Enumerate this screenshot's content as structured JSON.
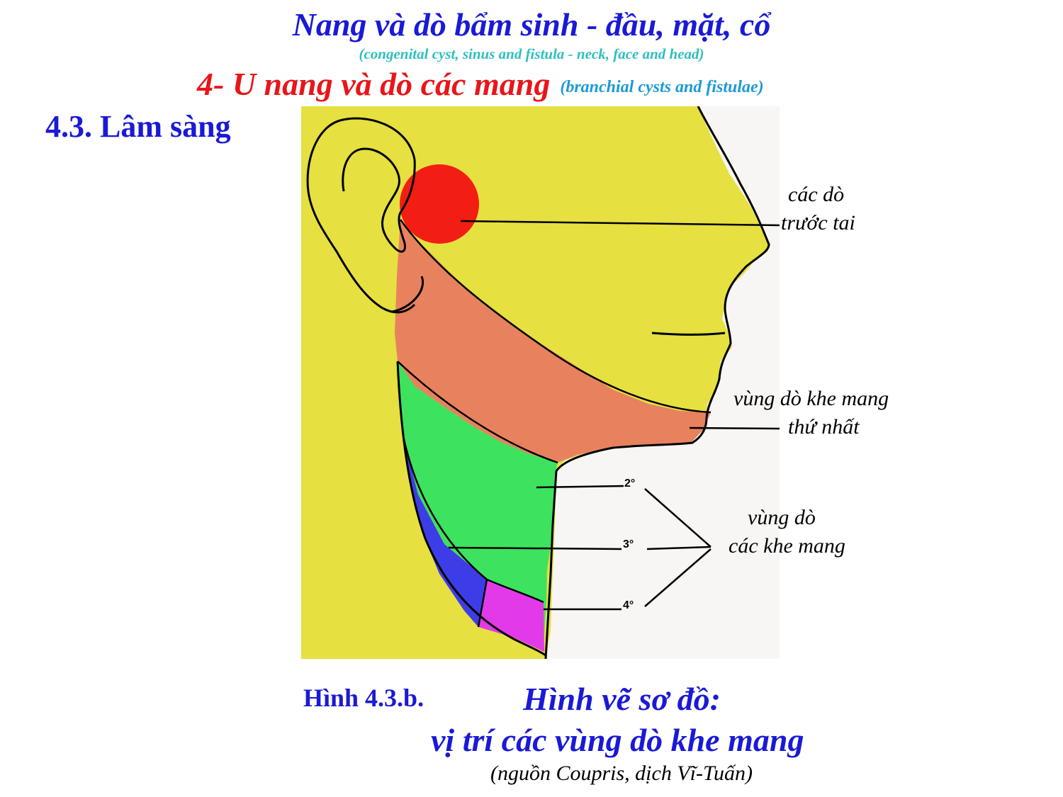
{
  "header": {
    "title": "Nang và dò bẩm sinh - đầu, mặt, cổ",
    "subtitle": "(congenital cyst, sinus and fistula - neck, face and head)",
    "section": "4- U nang và dò các mang",
    "section_en": "(branchial cysts and fistulae)",
    "subsection": "4.3. Lâm sàng"
  },
  "figure": {
    "labels": {
      "preauricular_line1": "các dò",
      "preauricular_line2": "trước tai",
      "first_cleft_line1": "vùng dò khe mang",
      "first_cleft_line2": "thứ nhất",
      "clefts_line1": "vùng dò",
      "clefts_line2": "các khe mang"
    },
    "numbers": [
      "2°",
      "3°",
      "4°"
    ],
    "colors": {
      "background": "#e6e040",
      "preauricular": "#f21e14",
      "first_cleft": "#e8825e",
      "second_cleft": "#3de35e",
      "third_cleft": "#3d3de8",
      "fourth_cleft": "#e23ae8",
      "neck_front": "#f7f6f4"
    }
  },
  "caption": {
    "label": "Hình 4.3.b.",
    "title_line1": "Hình vẽ sơ đồ:",
    "title_line2": "vị trí các vùng dò khe mang",
    "source": "(nguồn Coupris, dịch Vĩ-Tuấn)"
  }
}
